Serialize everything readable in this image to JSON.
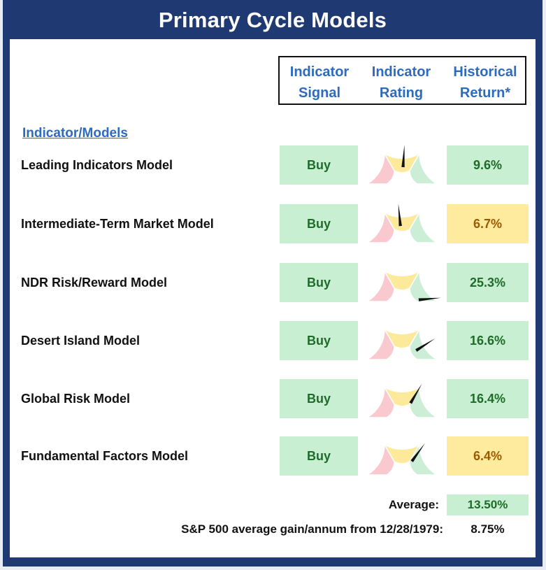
{
  "title": "Primary Cycle Models",
  "headers": {
    "signal": [
      "Indicator",
      "Signal"
    ],
    "rating": [
      "Indicator",
      "Rating"
    ],
    "return": [
      "Historical",
      "Return*"
    ]
  },
  "section_label": "Indicator/Models",
  "colors": {
    "frame": "#1f3a73",
    "header_text": "#2e6bbd",
    "green_fill": "#c9efd2",
    "green_text": "#1e6b2a",
    "yellow_fill": "#ffeb9e",
    "yellow_text": "#9c5a00",
    "gauge_red": "#f9c9cf",
    "gauge_yellow": "#fde99a",
    "gauge_green": "#cdeed6"
  },
  "models": [
    {
      "name": "Leading Indicators Model",
      "signal": "Buy",
      "rating_fraction": 0.52,
      "return": "9.6%",
      "return_status": "green"
    },
    {
      "name": "Intermediate-Term Market Model",
      "signal": "Buy",
      "rating_fraction": 0.47,
      "return": "6.7%",
      "return_status": "yellow"
    },
    {
      "name": "NDR Risk/Reward Model",
      "signal": "Buy",
      "rating_fraction": 0.97,
      "return": "25.3%",
      "return_status": "green"
    },
    {
      "name": "Desert Island Model",
      "signal": "Buy",
      "rating_fraction": 0.82,
      "return": "16.6%",
      "return_status": "green"
    },
    {
      "name": "Global Risk Model",
      "signal": "Buy",
      "rating_fraction": 0.67,
      "return": "16.4%",
      "return_status": "green"
    },
    {
      "name": "Fundamental Factors Model",
      "signal": "Buy",
      "rating_fraction": 0.7,
      "return": "6.4%",
      "return_status": "yellow"
    }
  ],
  "average": {
    "label": "Average:",
    "value": "13.50%"
  },
  "sp500": {
    "label": "S&P 500 average gain/annum from 12/28/1979:",
    "value": "8.75%"
  }
}
